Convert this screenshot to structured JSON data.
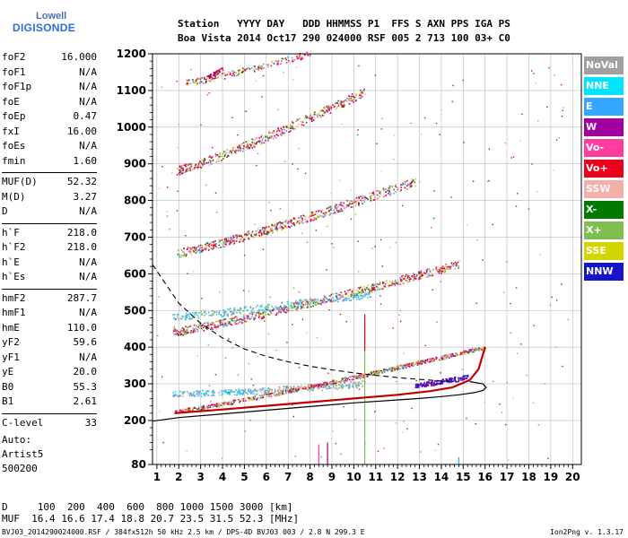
{
  "logo": {
    "line1": "Lowell",
    "line2": "DIGISONDE"
  },
  "header": {
    "line1": "Station   YYYY DAY   DDD HHMMSS P1  FFS S AXN PPS IGA PS",
    "line2": "Boa Vista 2014 Oct17 290 024000 RSF 005 2 713 100 03+ C0"
  },
  "params": [
    {
      "name": "foF2",
      "value": "16.000"
    },
    {
      "name": "foF1",
      "value": "N/A"
    },
    {
      "name": "foF1p",
      "value": "N/A"
    },
    {
      "name": "foE",
      "value": "N/A"
    },
    {
      "name": "foEp",
      "value": "0.47"
    },
    {
      "name": "fxI",
      "value": "16.00"
    },
    {
      "name": "foEs",
      "value": "N/A"
    },
    {
      "name": "fmin",
      "value": "1.60"
    },
    {
      "sep": true
    },
    {
      "name": "MUF(D)",
      "value": "52.32"
    },
    {
      "name": "M(D)",
      "value": "3.27"
    },
    {
      "name": "D",
      "value": "N/A"
    },
    {
      "sep": true
    },
    {
      "name": "h`F",
      "value": "218.0"
    },
    {
      "name": "h`F2",
      "value": "218.0"
    },
    {
      "name": "h`E",
      "value": "N/A"
    },
    {
      "name": "h`Es",
      "value": "N/A"
    },
    {
      "sep": true
    },
    {
      "name": "hmF2",
      "value": "287.7"
    },
    {
      "name": "hmF1",
      "value": "N/A"
    },
    {
      "name": "hmE",
      "value": "110.0"
    },
    {
      "name": "yF2",
      "value": "59.6"
    },
    {
      "name": "yF1",
      "value": "N/A"
    },
    {
      "name": "yE",
      "value": "20.0"
    },
    {
      "name": "B0",
      "value": "55.3"
    },
    {
      "name": "B1",
      "value": "2.61"
    },
    {
      "sep": true
    },
    {
      "name": "C-level",
      "value": "33"
    }
  ],
  "auto_label": {
    "line1": "Auto:",
    "line2": "Artist5",
    "line3": "500200"
  },
  "legend": [
    {
      "label": "NoVal",
      "color": "#a0a0a0"
    },
    {
      "label": "NNE",
      "color": "#00e5ff"
    },
    {
      "label": "E",
      "color": "#35a7ff"
    },
    {
      "label": "W",
      "color": "#a0009f"
    },
    {
      "label": "Vo-",
      "color": "#ff3d9f"
    },
    {
      "label": "Vo+",
      "color": "#e8001c"
    },
    {
      "label": "SSW",
      "color": "#f2b0a8"
    },
    {
      "label": "X-",
      "color": "#007a00"
    },
    {
      "label": "X+",
      "color": "#7fbf4d"
    },
    {
      "label": "SSE",
      "color": "#d4d400"
    },
    {
      "label": "NNW",
      "color": "#1414c8"
    }
  ],
  "footer": {
    "d_line": "D     100  200  400  600  800 1000 1500 3000 [km]",
    "muf_line": "MUF  16.4 16.6 17.4 18.8 20.7 23.5 31.5 52.3 [MHz]",
    "info": "BVJ03_2014290024000.RSF / 384fx512h 50 kHz 2.5 km / DPS-4D BVJ03 003 / 2.8 N 299.3 E",
    "version": "Ion2Png v. 1.3.17"
  },
  "chart_data": {
    "type": "scatter",
    "x_ticks": [
      "1",
      "2",
      "3",
      "4",
      "5",
      "6",
      "7",
      "8",
      "9",
      "10",
      "11",
      "12",
      "13",
      "14",
      "15",
      "16",
      "17",
      "18",
      "19",
      "20"
    ],
    "y_ticks": [
      "80",
      "200",
      "300",
      "400",
      "500",
      "600",
      "700",
      "800",
      "900",
      "1000",
      "1100",
      "1200"
    ],
    "xlim": [
      0.8,
      20.4
    ],
    "ylim": [
      80,
      1200
    ],
    "grid": true,
    "traces": [
      {
        "name": "o-trace F2",
        "color": "#c00000",
        "x": [
          1.8,
          4,
          6,
          8,
          10,
          12,
          13.5,
          14.5,
          15.3,
          15.7,
          16
        ],
        "y": [
          220,
          230,
          240,
          250,
          260,
          270,
          280,
          290,
          310,
          340,
          400
        ]
      },
      {
        "name": "model",
        "color": "#000000",
        "x": [
          0.8,
          2,
          4,
          6,
          8,
          10,
          12,
          13,
          14,
          14.8,
          15.5,
          15.9,
          16.05,
          15.9,
          15.3
        ],
        "y": [
          198,
          208,
          218,
          228,
          238,
          248,
          256,
          260,
          265,
          270,
          276,
          282,
          290,
          300,
          306
        ]
      },
      {
        "name": "profile-dashed",
        "color": "#000000",
        "x": [
          0.8,
          2,
          3,
          4,
          5,
          6,
          7,
          8,
          9,
          10,
          11,
          12,
          13,
          14,
          14.8
        ],
        "y": [
          625,
          520,
          465,
          425,
          395,
          375,
          360,
          348,
          338,
          330,
          323,
          317,
          312,
          308,
          305
        ]
      }
    ]
  }
}
